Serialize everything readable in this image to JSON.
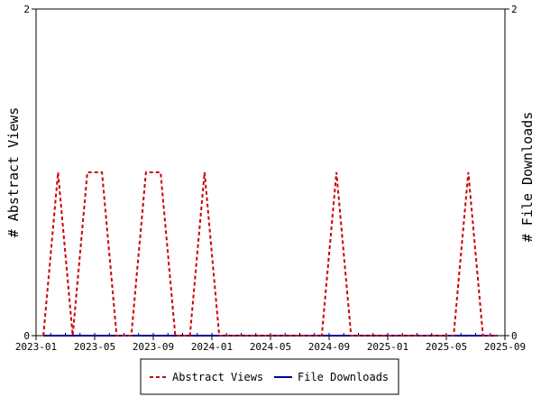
{
  "chart_data": {
    "type": "line",
    "y_left_label": "# Abstract Views",
    "y_right_label": "# File Downloads",
    "y_left_ticks": [
      "0",
      "2"
    ],
    "y_right_ticks": [
      "0",
      "2"
    ],
    "ylim_left": [
      0,
      2
    ],
    "ylim_right": [
      0,
      2
    ],
    "xlim": [
      "2023-01",
      "2025-09"
    ],
    "x_tick_labels": [
      "2023-01",
      "2023-05",
      "2023-09",
      "2024-01",
      "2024-05",
      "2024-09",
      "2025-01",
      "2025-05",
      "2025-09"
    ],
    "grid": false,
    "legend_position": "bottom",
    "series": [
      {
        "name": "Abstract Views",
        "color": "#cc0000",
        "style": "dashed",
        "axis": "left",
        "x": [
          "2023-01",
          "2023-02",
          "2023-03",
          "2023-04",
          "2023-05",
          "2023-06",
          "2023-07",
          "2023-08",
          "2023-09",
          "2023-10",
          "2023-11",
          "2023-12",
          "2024-01",
          "2024-02",
          "2024-03",
          "2024-04",
          "2024-05",
          "2024-06",
          "2024-07",
          "2024-08",
          "2024-09",
          "2024-10",
          "2024-11",
          "2024-12",
          "2025-01",
          "2025-02",
          "2025-03",
          "2025-04",
          "2025-05",
          "2025-06",
          "2025-07",
          "2025-08"
        ],
        "values": [
          0,
          1,
          0,
          1,
          1,
          0,
          0,
          1,
          1,
          0,
          0,
          1,
          0,
          0,
          0,
          0,
          0,
          0,
          0,
          0,
          1,
          0,
          0,
          0,
          0,
          0,
          0,
          0,
          0,
          1,
          0,
          0
        ]
      },
      {
        "name": "File Downloads",
        "color": "#000099",
        "style": "solid",
        "axis": "right",
        "x": [
          "2023-01",
          "2023-02",
          "2023-03",
          "2023-04",
          "2023-05",
          "2023-06",
          "2023-07",
          "2023-08",
          "2023-09",
          "2023-10",
          "2023-11",
          "2023-12",
          "2024-01",
          "2024-02",
          "2024-03",
          "2024-04",
          "2024-05",
          "2024-06",
          "2024-07",
          "2024-08",
          "2024-09",
          "2024-10",
          "2024-11",
          "2024-12",
          "2025-01",
          "2025-02",
          "2025-03",
          "2025-04",
          "2025-05",
          "2025-06",
          "2025-07",
          "2025-08"
        ],
        "values": [
          0,
          0,
          0,
          0,
          0,
          0,
          0,
          0,
          0,
          0,
          0,
          0,
          0,
          0,
          0,
          0,
          0,
          0,
          0,
          0,
          0,
          0,
          0,
          0,
          0,
          0,
          0,
          0,
          0,
          0,
          0,
          0
        ]
      }
    ]
  }
}
